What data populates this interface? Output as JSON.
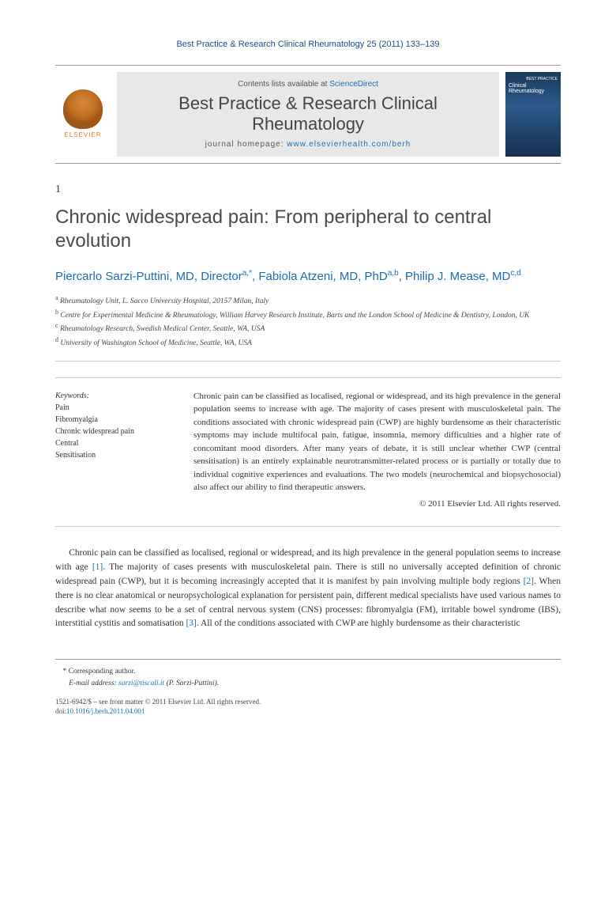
{
  "journal_header": "Best Practice & Research Clinical Rheumatology 25 (2011) 133–139",
  "banner": {
    "contents_prefix": "Contents lists available at ",
    "sciencedirect": "ScienceDirect",
    "journal_name": "Best Practice & Research Clinical Rheumatology",
    "homepage_prefix": "journal homepage: ",
    "homepage_url": "www.elsevierhealth.com/berh",
    "elsevier_label": "ELSEVIER",
    "cover_top": "BEST PRACTICE",
    "cover_title": "Clinical Rheumatology"
  },
  "section_number": "1",
  "title": "Chronic widespread pain: From peripheral to central evolution",
  "authors_html": "Piercarlo Sarzi-Puttini, MD, Director <sup>a,</sup>*, Fabiola Atzeni, MD, PhD <sup>a,b</sup>, Philip J. Mease, MD <sup>c,d</sup>",
  "authors": [
    {
      "name": "Piercarlo Sarzi-Puttini",
      "role": "MD, Director",
      "sup": "a,*"
    },
    {
      "name": "Fabiola Atzeni",
      "role": "MD, PhD",
      "sup": "a,b"
    },
    {
      "name": "Philip J. Mease",
      "role": "MD",
      "sup": "c,d"
    }
  ],
  "affiliations": [
    {
      "sup": "a",
      "text": "Rheumatology Unit, L. Sacco University Hospital, 20157 Milan, Italy"
    },
    {
      "sup": "b",
      "text": "Centre for Experimental Medicine & Rheumatology, William Harvey Research Institute, Barts and the London School of Medicine & Dentistry, London, UK"
    },
    {
      "sup": "c",
      "text": "Rheumatology Research, Swedish Medical Center, Seattle, WA, USA"
    },
    {
      "sup": "d",
      "text": "University of Washington School of Medicine, Seattle, WA, USA"
    }
  ],
  "keywords_label": "Keywords:",
  "keywords": [
    "Pain",
    "Fibromyalgia",
    "Chronic widespread pain",
    "Central",
    "Sensitisation"
  ],
  "abstract": "Chronic pain can be classified as localised, regional or widespread, and its high prevalence in the general population seems to increase with age. The majority of cases present with musculoskeletal pain. The conditions associated with chronic widespread pain (CWP) are highly burdensome as their characteristic symptoms may include multifocal pain, fatigue, insomnia, memory difficulties and a higher rate of concomitant mood disorders. After many years of debate, it is still unclear whether CWP (central sensitisation) is an entirely explainable neurotransmitter-related process or is partially or totally due to individual cognitive experiences and evaluations. The two models (neurochemical and biopsychosocial) also affect our ability to find therapeutic answers.",
  "abstract_copyright": "© 2011 Elsevier Ltd. All rights reserved.",
  "body_paragraph": "Chronic pain can be classified as localised, regional or widespread, and its high prevalence in the general population seems to increase with age [1]. The majority of cases presents with musculoskeletal pain. There is still no universally accepted definition of chronic widespread pain (CWP), but it is becoming increasingly accepted that it is manifest by pain involving multiple body regions [2]. When there is no clear anatomical or neuropsychological explanation for persistent pain, different medical specialists have used various names to describe what now seems to be a set of central nervous system (CNS) processes: fibromyalgia (FM), irritable bowel syndrome (IBS), interstitial cystitis and somatisation [3]. All of the conditions associated with CWP are highly burdensome as their characteristic",
  "body_refs": [
    "[1]",
    "[2]",
    "[3]"
  ],
  "footer": {
    "corr_label": "* Corresponding author.",
    "email_label": "E-mail address:",
    "email": "sarzi@tiscali.it",
    "email_name": "(P. Sarzi-Puttini).",
    "issn_line": "1521-6942/$ – see front matter © 2011 Elsevier Ltd. All rights reserved.",
    "doi_prefix": "doi:",
    "doi": "10.1016/j.berh.2011.04.001"
  },
  "colors": {
    "link": "#1a6db5",
    "heading": "#4a4a4a",
    "banner_bg": "#e8e8e8",
    "elsevier_orange": "#e67e22",
    "cover_blue": "#1a3a5a"
  }
}
